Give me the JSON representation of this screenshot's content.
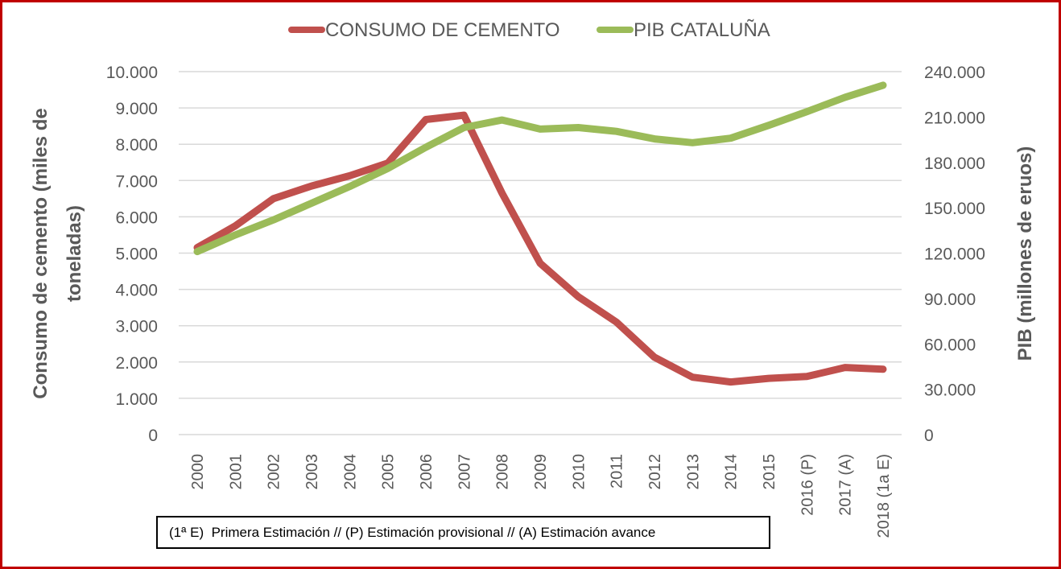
{
  "chart_data": {
    "type": "line",
    "title": "",
    "legend_position": "top",
    "grid": true,
    "categories": [
      "2000",
      "2001",
      "2002",
      "2003",
      "2004",
      "2005",
      "2006",
      "2007",
      "2008",
      "2009",
      "2010",
      "2011",
      "2012",
      "2013",
      "2014",
      "2015",
      "2016 (P)",
      "2017 (A)",
      "2018 (1a E)"
    ],
    "series": [
      {
        "name": "CONSUMO DE CEMENTO",
        "axis": "left",
        "color": "#c0504d",
        "values": [
          5150,
          5750,
          6500,
          6850,
          7130,
          7480,
          8680,
          8800,
          6650,
          4720,
          3800,
          3100,
          2130,
          1580,
          1450,
          1550,
          1600,
          1850,
          1800
        ]
      },
      {
        "name": "PIB CATALUÑA",
        "axis": "right",
        "color": "#9bbb59",
        "values": [
          121000,
          132000,
          142000,
          153000,
          164000,
          176000,
          190000,
          203000,
          208000,
          202000,
          203000,
          200500,
          195500,
          193000,
          196000,
          204500,
          213500,
          223000,
          231000
        ]
      }
    ],
    "ylabel": "Consumo de cemento (miles de toneladas)",
    "ylabel_lines": [
      "Consumo de cemento (miles de",
      "toneladas)"
    ],
    "ylim": [
      0,
      10000
    ],
    "yticks": [
      0,
      1000,
      2000,
      3000,
      4000,
      5000,
      6000,
      7000,
      8000,
      9000,
      10000
    ],
    "ytick_labels": [
      "0",
      "1.000",
      "2.000",
      "3.000",
      "4.000",
      "5.000",
      "6.000",
      "7.000",
      "8.000",
      "9.000",
      "10.000"
    ],
    "y2label": "PIB (millones de eruos)",
    "y2lim": [
      0,
      240000
    ],
    "y2ticks": [
      0,
      30000,
      60000,
      90000,
      120000,
      150000,
      180000,
      210000,
      240000
    ],
    "y2tick_labels": [
      "0",
      "30.000",
      "60.000",
      "90.000",
      "120.000",
      "150.000",
      "180.000",
      "210.000",
      "240.000"
    ],
    "xlabel": "",
    "annotation": "(1ª E)  Primera Estimación // (P) Estimación provisional // (A) Estimación avance"
  },
  "colors": {
    "frame": "#c00000",
    "grid": "#d9d9d9",
    "text": "#595959"
  }
}
